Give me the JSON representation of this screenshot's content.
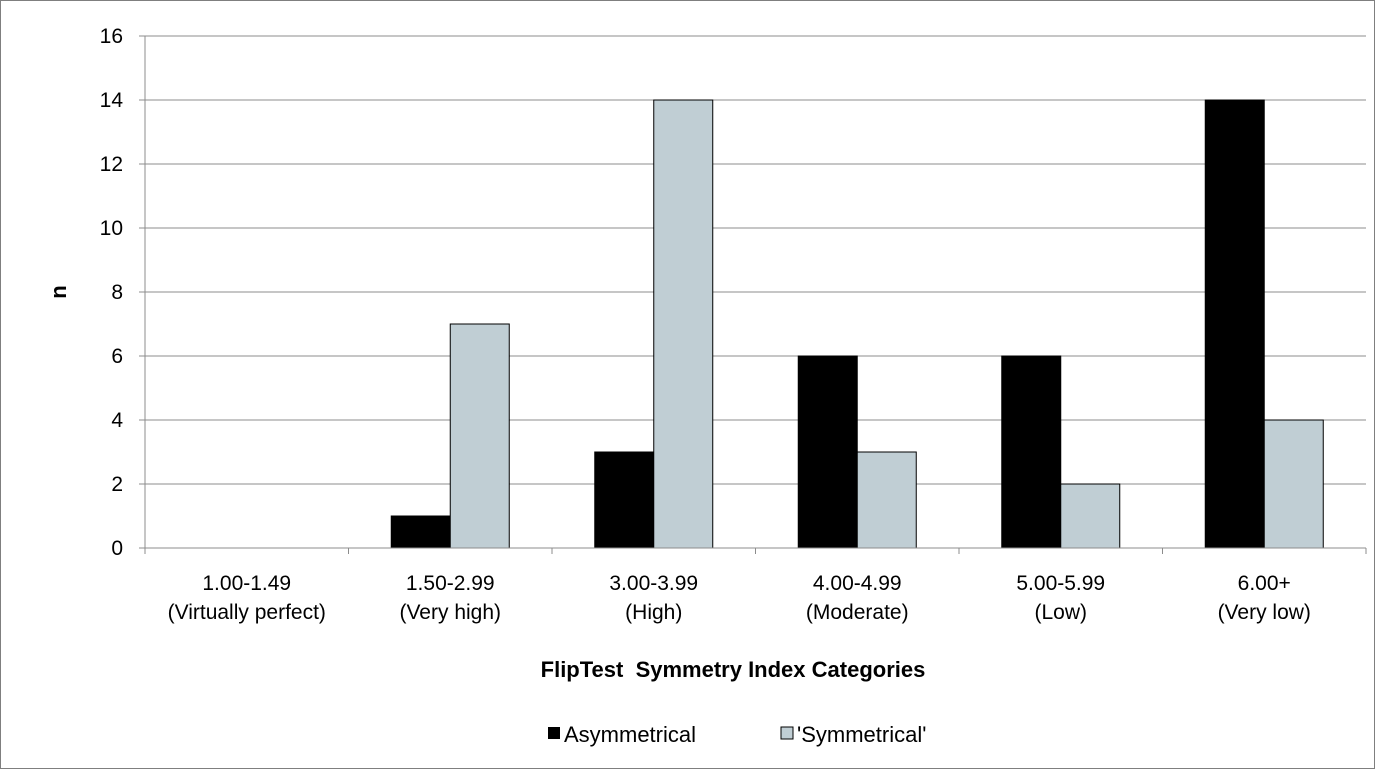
{
  "chart_data": {
    "type": "bar",
    "title": "",
    "xlabel": "FlipTest  Symmetry Index Categories",
    "ylabel": "n",
    "ylim": [
      0,
      16
    ],
    "yticks": [
      "0",
      "2",
      "4",
      "6",
      "8",
      "10",
      "12",
      "14",
      "16"
    ],
    "grid": true,
    "legend_position": "bottom",
    "categories": [
      [
        "1.00-1.49",
        "(Virtually perfect)"
      ],
      [
        "1.50-2.99",
        "(Very high)"
      ],
      [
        "3.00-3.99",
        "(High)"
      ],
      [
        "4.00-4.99",
        "(Moderate)"
      ],
      [
        "5.00-5.99",
        "(Low)"
      ],
      [
        "6.00+",
        "(Very low)"
      ]
    ],
    "series": [
      {
        "name": "Asymmetrical",
        "color": "#000000",
        "values": [
          0,
          1,
          3,
          6,
          6,
          14
        ]
      },
      {
        "name": "'Symmetrical'",
        "color": "#c0ced4",
        "values": [
          0,
          7,
          14,
          3,
          2,
          4
        ]
      }
    ]
  }
}
